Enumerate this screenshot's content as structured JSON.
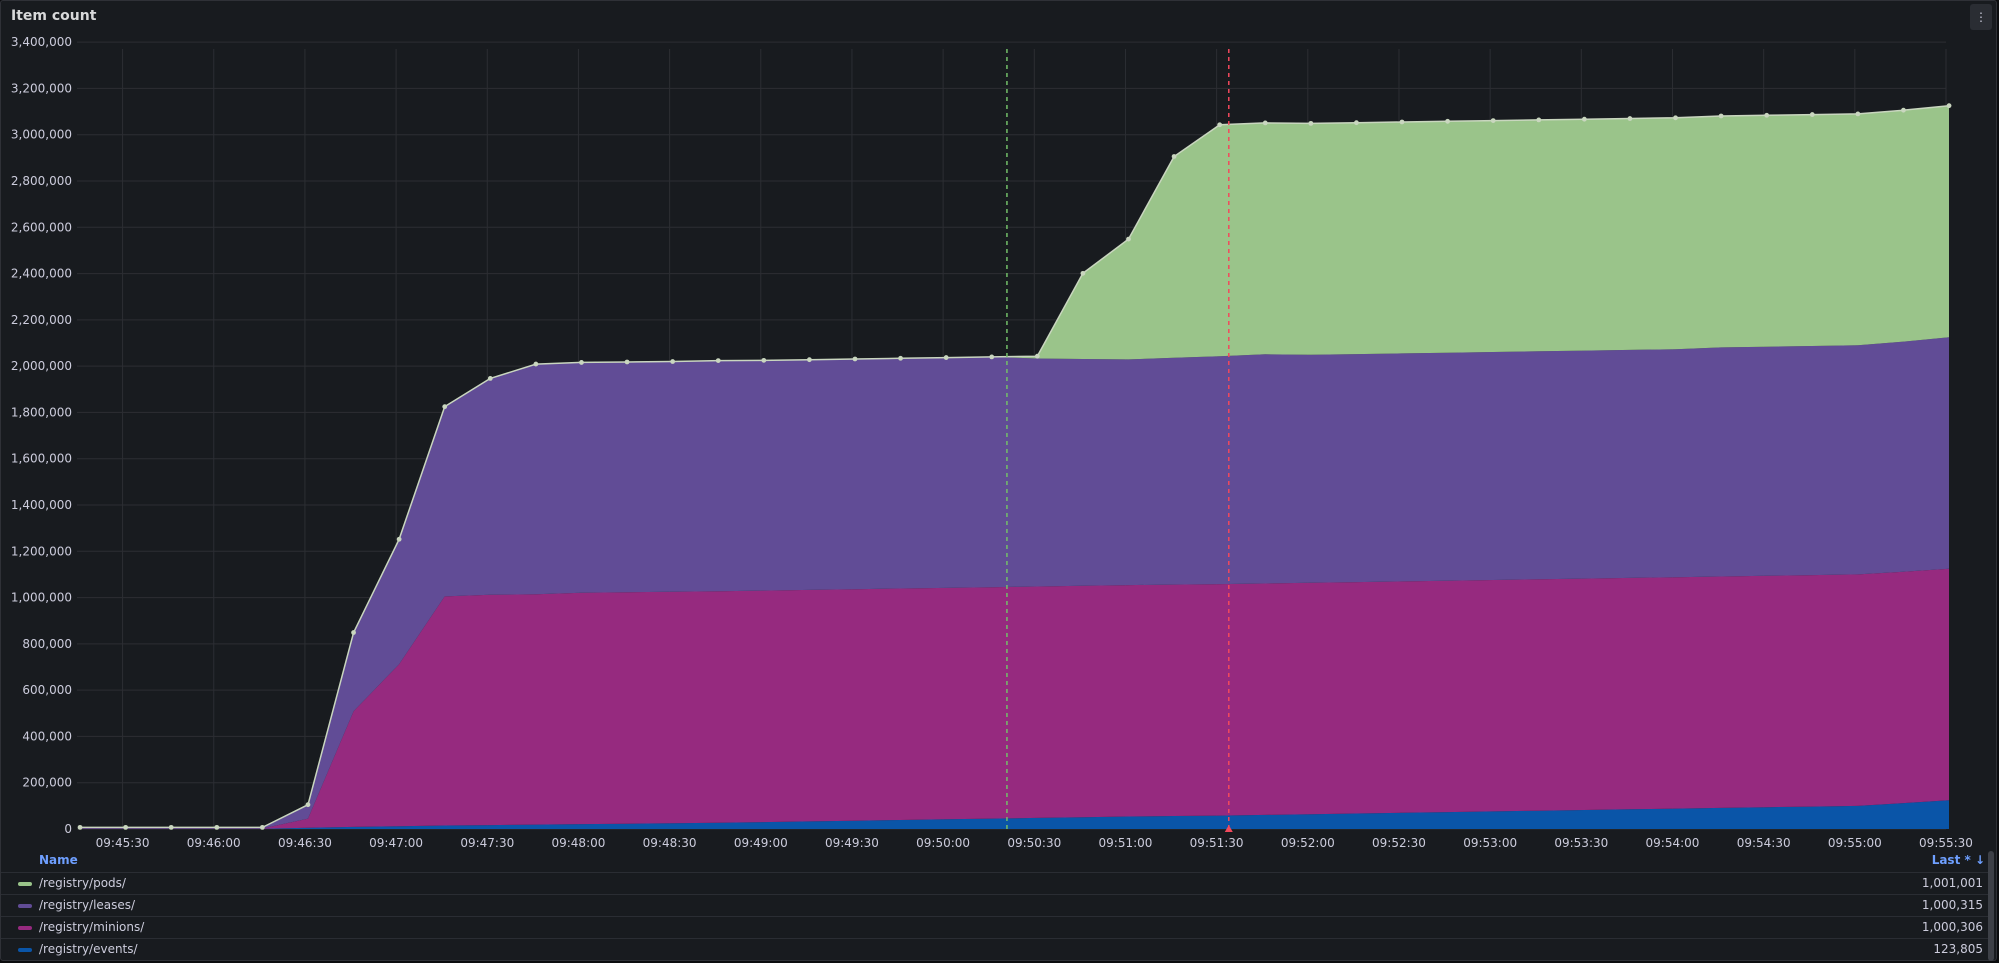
{
  "panel": {
    "title": "Item count",
    "menu_icon": "kebab-menu-icon"
  },
  "legend": {
    "name_header": "Name",
    "last_header": "Last * ↓",
    "rows": [
      {
        "name": "/registry/pods/",
        "last": "1,001,001",
        "color": "#9ac48a"
      },
      {
        "name": "/registry/leases/",
        "last": "1,000,315",
        "color": "#614c96"
      },
      {
        "name": "/registry/minions/",
        "last": "1,000,306",
        "color": "#962a7f"
      },
      {
        "name": "/registry/events/",
        "last": "123,805",
        "color": "#0a55a8"
      }
    ]
  },
  "chart_data": {
    "type": "area",
    "stacked": true,
    "title": "Item count",
    "x_tick_labels": [
      "09:45:30",
      "09:46:00",
      "09:46:30",
      "09:47:00",
      "09:47:30",
      "09:48:00",
      "09:48:30",
      "09:49:00",
      "09:49:30",
      "09:50:00",
      "09:50:30",
      "09:51:00",
      "09:51:30",
      "09:52:00",
      "09:52:30",
      "09:53:00",
      "09:53:30",
      "09:54:00",
      "09:54:30",
      "09:55:00",
      "09:55:30"
    ],
    "x_range": [
      "09:45:15",
      "09:55:30"
    ],
    "y_ticks": [
      0,
      200000,
      400000,
      600000,
      800000,
      1000000,
      1200000,
      1400000,
      1600000,
      1800000,
      2000000,
      2200000,
      2400000,
      2600000,
      2800000,
      3000000,
      3200000,
      3400000
    ],
    "ylim": [
      0,
      3500000
    ],
    "grid": true,
    "legend_position": "bottom",
    "annotations": [
      {
        "time": "09:50:21",
        "color": "#73bf69"
      },
      {
        "time": "09:51:34",
        "color": "#f2495c"
      }
    ],
    "x": [
      "09:45:16",
      "09:45:31",
      "09:45:46",
      "09:46:01",
      "09:46:16",
      "09:46:31",
      "09:46:46",
      "09:47:01",
      "09:47:16",
      "09:47:31",
      "09:47:46",
      "09:48:01",
      "09:48:16",
      "09:48:31",
      "09:48:46",
      "09:49:01",
      "09:49:16",
      "09:49:31",
      "09:49:46",
      "09:50:01",
      "09:50:16",
      "09:50:31",
      "09:50:46",
      "09:51:01",
      "09:51:16",
      "09:51:31",
      "09:51:46",
      "09:52:01",
      "09:52:16",
      "09:52:31",
      "09:52:46",
      "09:53:01",
      "09:53:16",
      "09:53:31",
      "09:53:46",
      "09:54:01",
      "09:54:16",
      "09:54:31",
      "09:54:46",
      "09:55:01",
      "09:55:16",
      "09:55:31"
    ],
    "series": [
      {
        "name": "/registry/events/",
        "color": "#0a55a8",
        "values": [
          1000,
          1000,
          1000,
          1000,
          1000,
          5000,
          9000,
          12000,
          15000,
          17000,
          19000,
          21000,
          23000,
          25000,
          27000,
          30000,
          33000,
          36000,
          39000,
          42000,
          45000,
          48000,
          51000,
          54000,
          56000,
          58000,
          61000,
          64000,
          67000,
          70000,
          73000,
          76000,
          79000,
          82000,
          85000,
          88000,
          91000,
          94000,
          97000,
          100000,
          112000,
          123805
        ]
      },
      {
        "name": "/registry/minions/",
        "color": "#962a7f",
        "values": [
          1000,
          1000,
          1000,
          1000,
          1000,
          40000,
          500000,
          700000,
          990000,
          995000,
          995000,
          1000000,
          1000000,
          1000000,
          1000000,
          1000000,
          1000000,
          1000000,
          1000000,
          1000000,
          1000000,
          1000000,
          1000000,
          1000000,
          1000000,
          1000000,
          1000000,
          1000000,
          1000000,
          1000000,
          1000000,
          1000000,
          1000000,
          1000000,
          1000000,
          1000000,
          1000000,
          1000000,
          1000000,
          1000000,
          1000000,
          1000306
        ]
      },
      {
        "name": "/registry/leases/",
        "color": "#614c96",
        "values": [
          5000,
          5000,
          5000,
          5000,
          5000,
          60000,
          340000,
          540000,
          820000,
          935000,
          995000,
          995000,
          995000,
          995000,
          997000,
          995000,
          995000,
          995000,
          995000,
          995000,
          995000,
          985000,
          980000,
          975000,
          980000,
          985000,
          990000,
          985000,
          985000,
          985000,
          985000,
          985000,
          985000,
          985000,
          985000,
          985000,
          990000,
          990000,
          990000,
          990000,
          994000,
          1000315
        ]
      },
      {
        "name": "/registry/pods/",
        "color": "#9ac48a",
        "values": [
          0,
          0,
          0,
          0,
          0,
          0,
          0,
          0,
          0,
          0,
          0,
          0,
          0,
          0,
          0,
          0,
          0,
          0,
          0,
          0,
          0,
          10000,
          370000,
          520000,
          870000,
          1000000,
          1000000,
          1000000,
          1000000,
          1000000,
          1000000,
          1000000,
          1000000,
          1000000,
          1000000,
          1000000,
          1000000,
          1000000,
          1000000,
          1000000,
          1000000,
          1001001
        ]
      }
    ]
  }
}
